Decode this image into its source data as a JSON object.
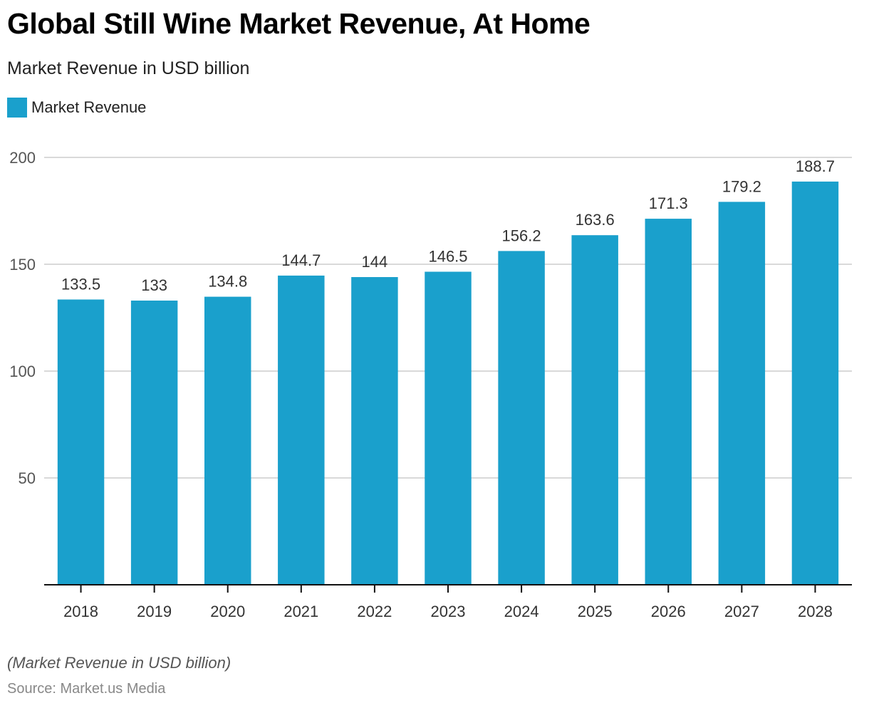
{
  "chart_data": {
    "type": "bar",
    "title": "Global Still Wine Market Revenue, At Home",
    "subtitle": "Market Revenue in USD billion",
    "xlabel": "",
    "ylabel": "",
    "categories": [
      "2018",
      "2019",
      "2020",
      "2021",
      "2022",
      "2023",
      "2024",
      "2025",
      "2026",
      "2027",
      "2028"
    ],
    "series": [
      {
        "name": "Market Revenue",
        "color": "#1aa0cc",
        "values": [
          133.5,
          133,
          134.8,
          144.7,
          144,
          146.5,
          156.2,
          163.6,
          171.3,
          179.2,
          188.7
        ],
        "labels": [
          "133.5",
          "133",
          "134.8",
          "144.7",
          "144",
          "146.5",
          "156.2",
          "163.6",
          "171.3",
          "179.2",
          "188.7"
        ]
      }
    ],
    "ylim": [
      0,
      200
    ],
    "yticks": [
      50,
      100,
      150,
      200
    ],
    "ytick_labels": [
      "50",
      "100",
      "150",
      "200"
    ],
    "grid": true,
    "legend": "top-left"
  },
  "footer": {
    "note": "(Market Revenue in USD billion)",
    "source": "Source: Market.us Media"
  }
}
